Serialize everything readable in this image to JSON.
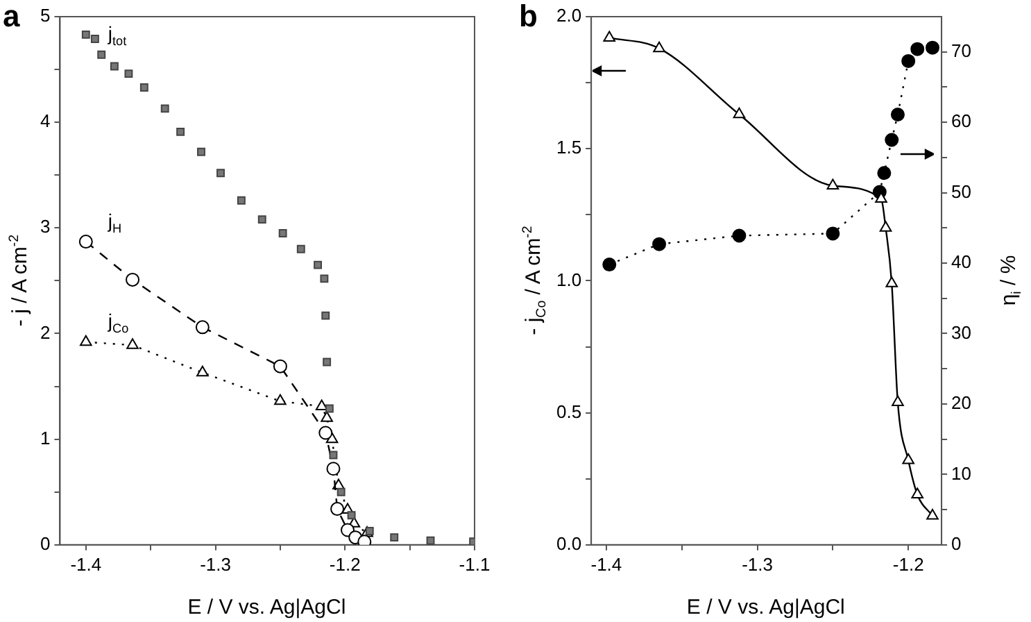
{
  "chart_data": [
    {
      "type": "line",
      "title": "a",
      "xlabel": "E / V vs. Ag|AgCl",
      "ylabel": "- j / A cm$^{-2}$",
      "xlim": [
        -1.42,
        -1.1
      ],
      "xticks": [
        -1.4,
        {
          "value": -1.35,
          "label": null
        },
        -1.3,
        {
          "value": -1.25,
          "label": null
        },
        -1.2,
        {
          "value": -1.15,
          "label": null
        },
        -1.1
      ],
      "ylim": [
        0,
        5
      ],
      "yticks": [
        0,
        {
          "value": 0.5,
          "label": null
        },
        1,
        {
          "value": 1.5,
          "label": null
        },
        2,
        {
          "value": 2.5,
          "label": null
        },
        3,
        {
          "value": 3.5,
          "label": null
        },
        4,
        {
          "value": 4.5,
          "label": null
        },
        5
      ],
      "grid": false,
      "legend": false,
      "series": [
        {
          "name": "j$_{tot}$",
          "type": "scatter",
          "marker": "square",
          "color": "#777777",
          "x": [
            -1.4,
            -1.393,
            -1.388,
            -1.378,
            -1.367,
            -1.355,
            -1.339,
            -1.327,
            -1.311,
            -1.296,
            -1.28,
            -1.264,
            -1.248,
            -1.234,
            -1.221,
            -1.216,
            -1.215,
            -1.214,
            -1.212,
            -1.209,
            -1.203,
            -1.195,
            -1.181,
            -1.162,
            -1.134,
            -1.101
          ],
          "values": [
            4.83,
            4.79,
            4.64,
            4.53,
            4.46,
            4.33,
            4.13,
            3.91,
            3.72,
            3.52,
            3.26,
            3.08,
            2.95,
            2.8,
            2.65,
            2.52,
            2.17,
            1.73,
            1.29,
            0.85,
            0.5,
            0.28,
            0.13,
            0.07,
            0.04,
            0.03
          ]
        },
        {
          "name": "j$_{H}$",
          "marker": "circle",
          "line_style": "dashed",
          "color": "#000000",
          "x": [
            -1.4,
            -1.364,
            -1.31,
            -1.25,
            -1.215,
            -1.209,
            -1.206,
            -1.198,
            -1.192,
            -1.185
          ],
          "values": [
            2.87,
            2.51,
            2.06,
            1.69,
            1.06,
            0.72,
            0.34,
            0.14,
            0.07,
            0.03
          ]
        },
        {
          "name": "j$_{Co}$",
          "marker": "triangle",
          "line_style": "dotted",
          "color": "#000000",
          "x": [
            -1.4,
            -1.364,
            -1.31,
            -1.25,
            -1.218,
            -1.214,
            -1.21,
            -1.205,
            -1.198,
            -1.193,
            -1.183
          ],
          "values": [
            1.92,
            1.89,
            1.63,
            1.36,
            1.31,
            1.2,
            1.0,
            0.56,
            0.33,
            0.2,
            0.11
          ]
        }
      ]
    },
    {
      "type": "line",
      "title": "b",
      "xlabel": "E / V vs. Ag|AgCl",
      "ylabel": "- j$_{Co}$ / A cm$^{-2}$",
      "y2label": "η$_{i}$ / %",
      "xlim": [
        -1.41,
        -1.178
      ],
      "xticks": [
        -1.4,
        {
          "value": -1.35,
          "label": null
        },
        -1.3,
        {
          "value": -1.25,
          "label": null
        },
        -1.2
      ],
      "ylim": [
        0,
        2
      ],
      "yticks": [
        {
          "value": 0,
          "label": "0.0"
        },
        {
          "value": 0.25,
          "label": null
        },
        0.5,
        {
          "value": 0.75,
          "label": null
        },
        {
          "value": 1,
          "label": "1.0"
        },
        {
          "value": 1.25,
          "label": null
        },
        1.5,
        {
          "value": 1.75,
          "label": null
        },
        {
          "value": 2,
          "label": "2.0"
        }
      ],
      "y2lim": [
        0,
        75
      ],
      "y2ticks": [
        0,
        {
          "value": 5,
          "label": null
        },
        10,
        {
          "value": 15,
          "label": null
        },
        20,
        {
          "value": 25,
          "label": null
        },
        30,
        {
          "value": 35,
          "label": null
        },
        40,
        {
          "value": 45,
          "label": null
        },
        50,
        {
          "value": 55,
          "label": null
        },
        60,
        {
          "value": 65,
          "label": null
        },
        70
      ],
      "grid": false,
      "legend": false,
      "series": [
        {
          "marker": "triangle",
          "line_style": "solid",
          "color": "#000000",
          "x": [
            -1.398,
            -1.365,
            -1.312,
            -1.25,
            -1.218,
            -1.215,
            -1.211,
            -1.207,
            -1.2,
            -1.194,
            -1.184
          ],
          "values": [
            1.92,
            1.88,
            1.63,
            1.36,
            1.31,
            1.2,
            0.99,
            0.54,
            0.32,
            0.19,
            0.11
          ]
        },
        {
          "marker": "circle",
          "line_style": "dotted",
          "axis": "y2",
          "color": "#000000",
          "x": [
            -1.398,
            -1.365,
            -1.312,
            -1.25,
            -1.219,
            -1.216,
            -1.211,
            -1.207,
            -1.2,
            -1.194,
            -1.184
          ],
          "values": [
            39.8,
            42.7,
            43.9,
            44.2,
            50.1,
            52.8,
            57.5,
            61.1,
            68.7,
            70.4,
            70.6
          ]
        }
      ]
    }
  ]
}
